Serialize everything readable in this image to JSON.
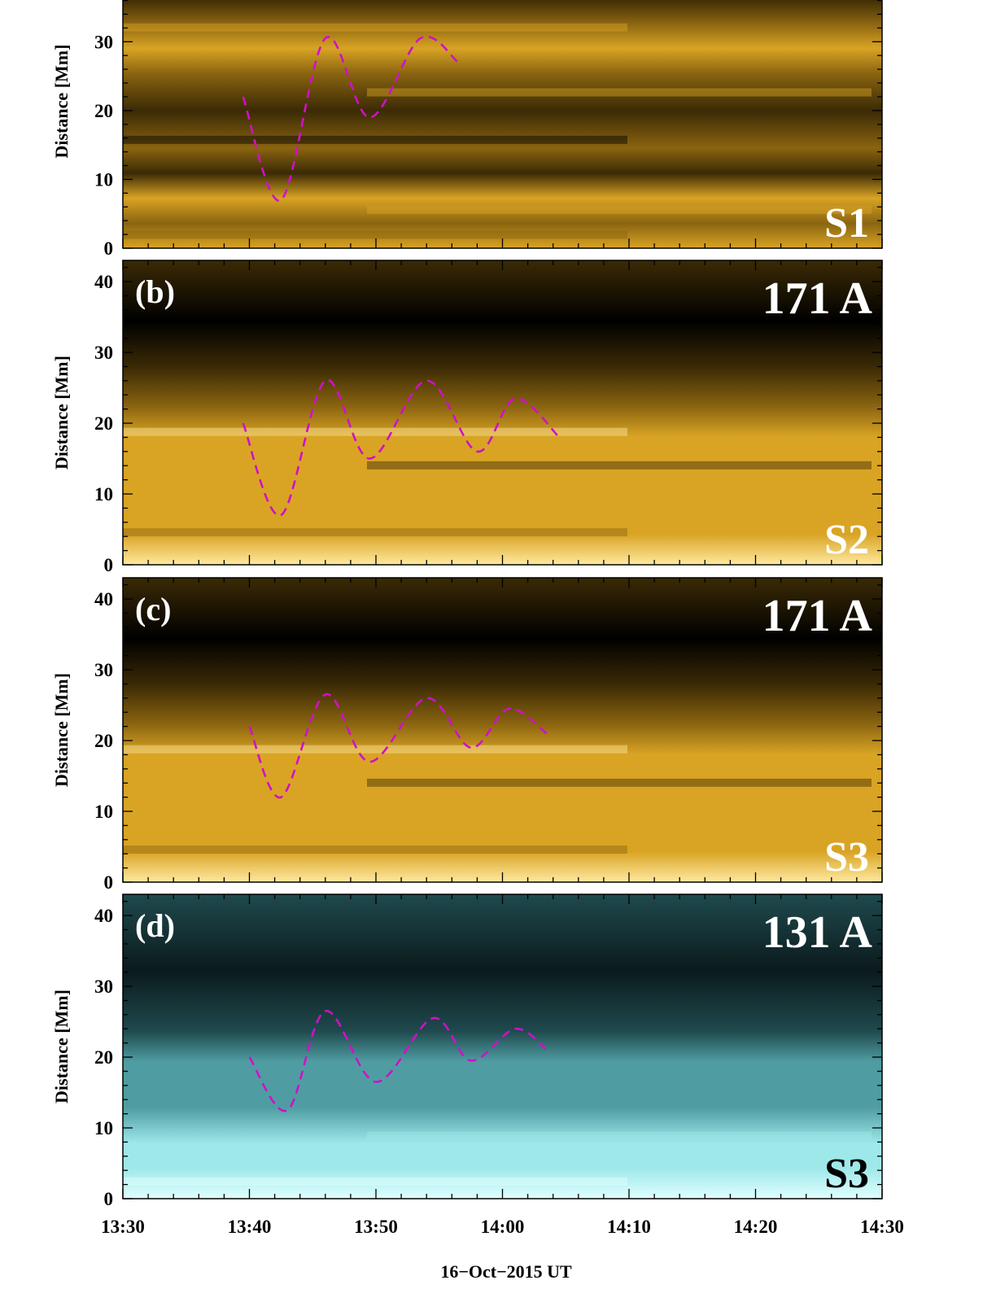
{
  "chart_data": [
    {
      "type": "heatmap",
      "panel_letter": "",
      "wavelength": "",
      "slit": "S1",
      "colormap": [
        "#000000",
        "#3b2a05",
        "#8a6410",
        "#d9a424",
        "#ffe9a0"
      ],
      "ylabel": "Distance [Mm]",
      "ylim": [
        0,
        35
      ],
      "yticks": [
        "0",
        "10",
        "20",
        "30"
      ],
      "fit_curve": {
        "x_min": [
          9.5,
          12.5,
          16,
          19.5,
          23.5,
          26.5
        ],
        "y_dist": [
          22,
          7,
          30.5,
          19,
          30.5,
          27
        ]
      }
    },
    {
      "type": "heatmap",
      "panel_letter": "(b)",
      "wavelength": "171 A",
      "slit": "S2",
      "colormap": [
        "#000000",
        "#3b2a05",
        "#8a6410",
        "#d9a424",
        "#ffe9a0"
      ],
      "ylabel": "Distance [Mm]",
      "ylim": [
        0,
        43
      ],
      "yticks": [
        "0",
        "10",
        "20",
        "30",
        "40"
      ],
      "fit_curve": {
        "x_min": [
          9.5,
          12.5,
          16,
          19.5,
          24,
          28,
          31,
          34.5
        ],
        "y_dist": [
          20,
          7,
          26,
          15,
          26,
          16,
          23.5,
          18
        ]
      }
    },
    {
      "type": "heatmap",
      "panel_letter": "(c)",
      "wavelength": "171 A",
      "slit": "S3",
      "colormap": [
        "#000000",
        "#3b2a05",
        "#8a6410",
        "#d9a424",
        "#ffe9a0"
      ],
      "ylabel": "Distance [Mm]",
      "ylim": [
        0,
        43
      ],
      "yticks": [
        "0",
        "10",
        "20",
        "30",
        "40"
      ],
      "fit_curve": {
        "x_min": [
          10,
          12.5,
          16,
          19.5,
          24,
          27.5,
          30.5,
          33.5
        ],
        "y_dist": [
          22,
          12,
          26.5,
          17,
          26,
          19,
          24.5,
          21
        ]
      }
    },
    {
      "type": "heatmap",
      "panel_letter": "(d)",
      "wavelength": "131 A",
      "slit": "S3",
      "colormap": [
        "#0b1a1c",
        "#1f4a4e",
        "#4f9da2",
        "#9fe8ea",
        "#e0ffff"
      ],
      "ylabel": "Distance [Mm]",
      "ylim": [
        0,
        43
      ],
      "yticks": [
        "0",
        "10",
        "20",
        "30",
        "40"
      ],
      "fit_curve": {
        "x_min": [
          10,
          13,
          16,
          20,
          24.5,
          27.5,
          31,
          33.5
        ],
        "y_dist": [
          20,
          12.5,
          26.5,
          16.5,
          25.5,
          19.5,
          24,
          21
        ]
      }
    }
  ],
  "x_axis": {
    "ticks_min": [
      0,
      10,
      20,
      30,
      40,
      50,
      60
    ],
    "tick_labels": [
      "13:30",
      "13:40",
      "13:50",
      "14:00",
      "14:10",
      "14:20",
      "14:30"
    ],
    "xlim": [
      0,
      60
    ],
    "xlabel": "16−Oct−2015  UT"
  }
}
